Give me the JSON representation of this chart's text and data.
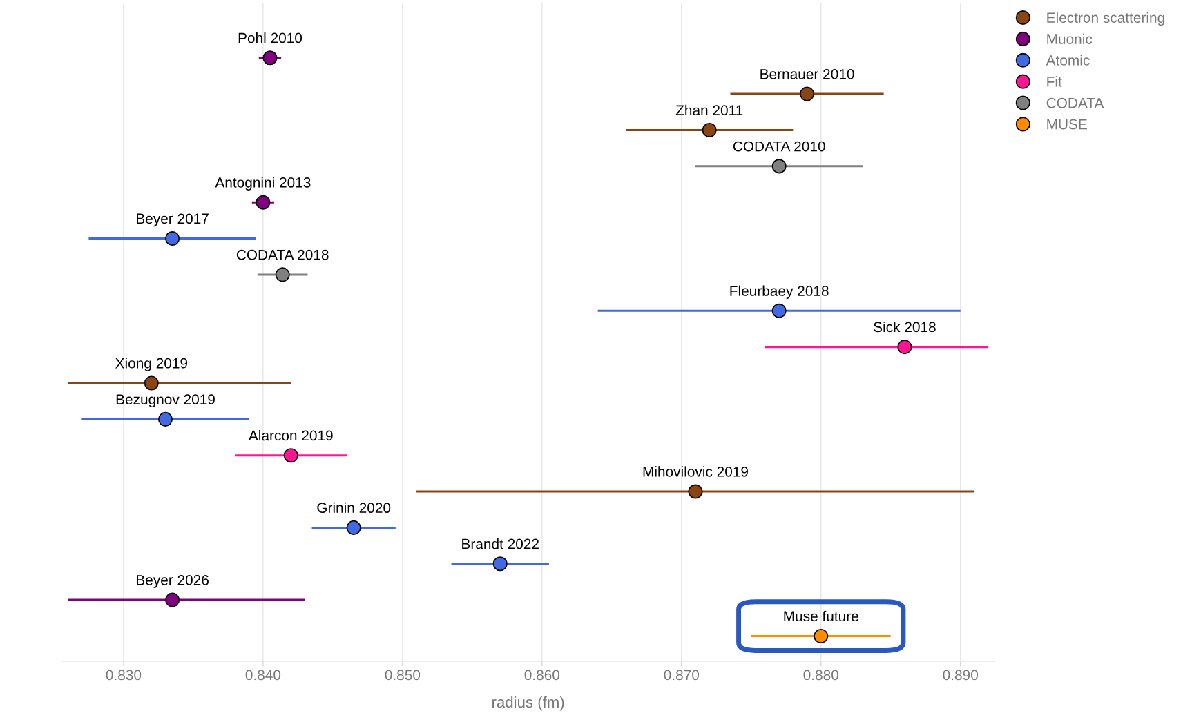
{
  "chart_data": {
    "type": "scatter",
    "orientation": "horizontal",
    "categories": [
      "Pohl 2010",
      "Bernauer 2010",
      "Zhan 2011",
      "CODATA 2010",
      "Antognini 2013",
      "Beyer 2017",
      "CODATA 2018",
      "Fleurbaey 2018",
      "Sick 2018",
      "Xiong 2019",
      "Bezugnov 2019",
      "Alarcon 2019",
      "Mihovilovic 2019",
      "Grinin 2020",
      "Brandt 2022",
      "Beyer 2026",
      "Muse future"
    ],
    "series": [
      {
        "name": "Electron scattering",
        "color": "#8b4513",
        "values": [
          null,
          0.879,
          0.872,
          null,
          null,
          null,
          null,
          null,
          null,
          0.832,
          null,
          null,
          0.871,
          null,
          null,
          null,
          null
        ],
        "errors": [
          null,
          0.0055,
          0.006,
          null,
          null,
          null,
          null,
          null,
          null,
          [
            0.826,
            0.842
          ],
          null,
          null,
          0.02,
          null,
          null,
          null,
          null
        ]
      },
      {
        "name": "Muonic",
        "color": "#800080",
        "values": [
          0.8405,
          null,
          null,
          null,
          0.84,
          null,
          null,
          null,
          null,
          null,
          null,
          null,
          null,
          null,
          null,
          0.8335,
          null
        ],
        "errors": [
          0.0008,
          null,
          null,
          null,
          0.0008,
          null,
          null,
          null,
          null,
          null,
          null,
          null,
          null,
          null,
          null,
          [
            0.826,
            0.843
          ],
          null
        ]
      },
      {
        "name": "Atomic",
        "color": "#4169e1",
        "values": [
          null,
          null,
          null,
          null,
          null,
          0.8335,
          null,
          0.877,
          null,
          null,
          0.833,
          null,
          null,
          0.8465,
          0.857,
          null,
          null
        ],
        "errors": [
          null,
          null,
          null,
          null,
          null,
          0.006,
          null,
          0.013,
          null,
          null,
          0.006,
          null,
          null,
          0.003,
          0.0035,
          null,
          null
        ]
      },
      {
        "name": "Fit",
        "color": "#ff1493",
        "values": [
          null,
          null,
          null,
          null,
          null,
          null,
          null,
          null,
          0.886,
          null,
          null,
          0.842,
          null,
          null,
          null,
          null,
          null
        ],
        "errors": [
          null,
          null,
          null,
          null,
          null,
          null,
          null,
          null,
          [
            0.876,
            0.892
          ],
          null,
          null,
          0.004,
          null,
          null,
          null,
          null,
          null
        ]
      },
      {
        "name": "CODATA",
        "color": "#808080",
        "values": [
          null,
          null,
          null,
          0.877,
          null,
          null,
          0.8414,
          null,
          null,
          null,
          null,
          null,
          null,
          null,
          null,
          null,
          null
        ],
        "errors": [
          null,
          null,
          null,
          0.006,
          null,
          null,
          0.0018,
          null,
          null,
          null,
          null,
          null,
          null,
          null,
          null,
          null,
          null
        ]
      },
      {
        "name": "MUSE",
        "color": "#ff8c00",
        "values": [
          null,
          null,
          null,
          null,
          null,
          null,
          null,
          null,
          null,
          null,
          null,
          null,
          null,
          null,
          null,
          null,
          0.88
        ],
        "errors": [
          null,
          null,
          null,
          null,
          null,
          null,
          null,
          null,
          null,
          null,
          null,
          null,
          null,
          null,
          null,
          null,
          0.005
        ]
      }
    ],
    "xlabel": "radius (fm)",
    "xlim": [
      0.8255,
      0.8925
    ],
    "xticks": [
      {
        "value": 0.83,
        "label": "0.830"
      },
      {
        "value": 0.84,
        "label": "0.840"
      },
      {
        "value": 0.85,
        "label": "0.850"
      },
      {
        "value": 0.86,
        "label": "0.860"
      },
      {
        "value": 0.87,
        "label": "0.870"
      },
      {
        "value": 0.88,
        "label": "0.880"
      },
      {
        "value": 0.89,
        "label": "0.890"
      }
    ],
    "grid": "x",
    "legend": "top right",
    "marker": "circle",
    "tick_labels": "x"
  }
}
